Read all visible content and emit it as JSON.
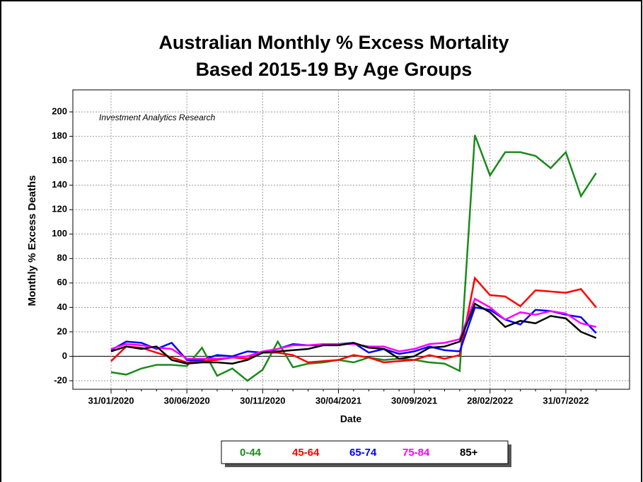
{
  "chart_data": {
    "type": "line",
    "title": [
      "Australian Monthly % Excess Mortality",
      "Based 2015-19 By Age Groups"
    ],
    "annotation": "Investment Analytics Research",
    "x_label": "Date",
    "y_label": "Monthly % Excess Deaths",
    "categories": [
      "31/01/2020",
      null,
      null,
      null,
      null,
      "30/06/2020",
      null,
      null,
      null,
      null,
      "30/11/2020",
      null,
      null,
      null,
      null,
      "30/04/2021",
      null,
      null,
      null,
      null,
      "30/09/2021",
      null,
      null,
      null,
      null,
      "28/02/2022",
      null,
      null,
      null,
      null,
      "31/07/2022",
      null,
      null
    ],
    "ylim": [
      -27,
      218
    ],
    "yticks": [
      -20,
      0,
      20,
      40,
      60,
      80,
      100,
      120,
      140,
      160,
      180,
      200
    ],
    "grid": true,
    "series": [
      {
        "name": "0-44",
        "color": "#1a8a1a",
        "values": [
          -13,
          -15,
          -10,
          -7,
          -7,
          -8,
          7,
          -16,
          -10,
          -20,
          -11,
          12,
          -9,
          -6,
          -5,
          -3,
          -5,
          -1,
          -3,
          -2,
          -3,
          -5,
          -6,
          -12,
          181,
          148,
          167,
          167,
          164,
          154,
          167,
          131,
          150
        ]
      },
      {
        "name": "45-64",
        "color": "#ff0000",
        "values": [
          -4,
          8,
          7,
          3,
          -1,
          -5,
          -4,
          -3,
          -1,
          -2,
          3,
          3,
          1,
          -5,
          -4,
          -3,
          1,
          -1,
          -5,
          -4,
          -3,
          1,
          -2,
          1,
          64,
          50,
          49,
          41,
          54,
          53,
          52,
          55,
          40
        ]
      },
      {
        "name": "65-74",
        "color": "#0000ff",
        "values": [
          5,
          12,
          11,
          6,
          11,
          -3,
          -3,
          1,
          0,
          4,
          3,
          6,
          10,
          9,
          9,
          10,
          11,
          3,
          6,
          2,
          4,
          8,
          5,
          4,
          40,
          38,
          30,
          26,
          38,
          37,
          34,
          32,
          19
        ]
      },
      {
        "name": "75-84",
        "color": "#ff00ff",
        "values": [
          6,
          10,
          9,
          7,
          6,
          -2,
          -2,
          -2,
          -1,
          0,
          4,
          6,
          9,
          9,
          10,
          10,
          10,
          8,
          8,
          4,
          6,
          10,
          11,
          14,
          47,
          40,
          30,
          36,
          34,
          37,
          35,
          27,
          24
        ]
      },
      {
        "name": "85+",
        "color": "#000000",
        "values": [
          4,
          8,
          6,
          8,
          -3,
          -6,
          -5,
          -5,
          -6,
          -3,
          3,
          4,
          5,
          6,
          9,
          9,
          11,
          7,
          6,
          -2,
          0,
          7,
          8,
          12,
          43,
          36,
          24,
          29,
          27,
          33,
          31,
          20,
          15
        ]
      }
    ]
  }
}
